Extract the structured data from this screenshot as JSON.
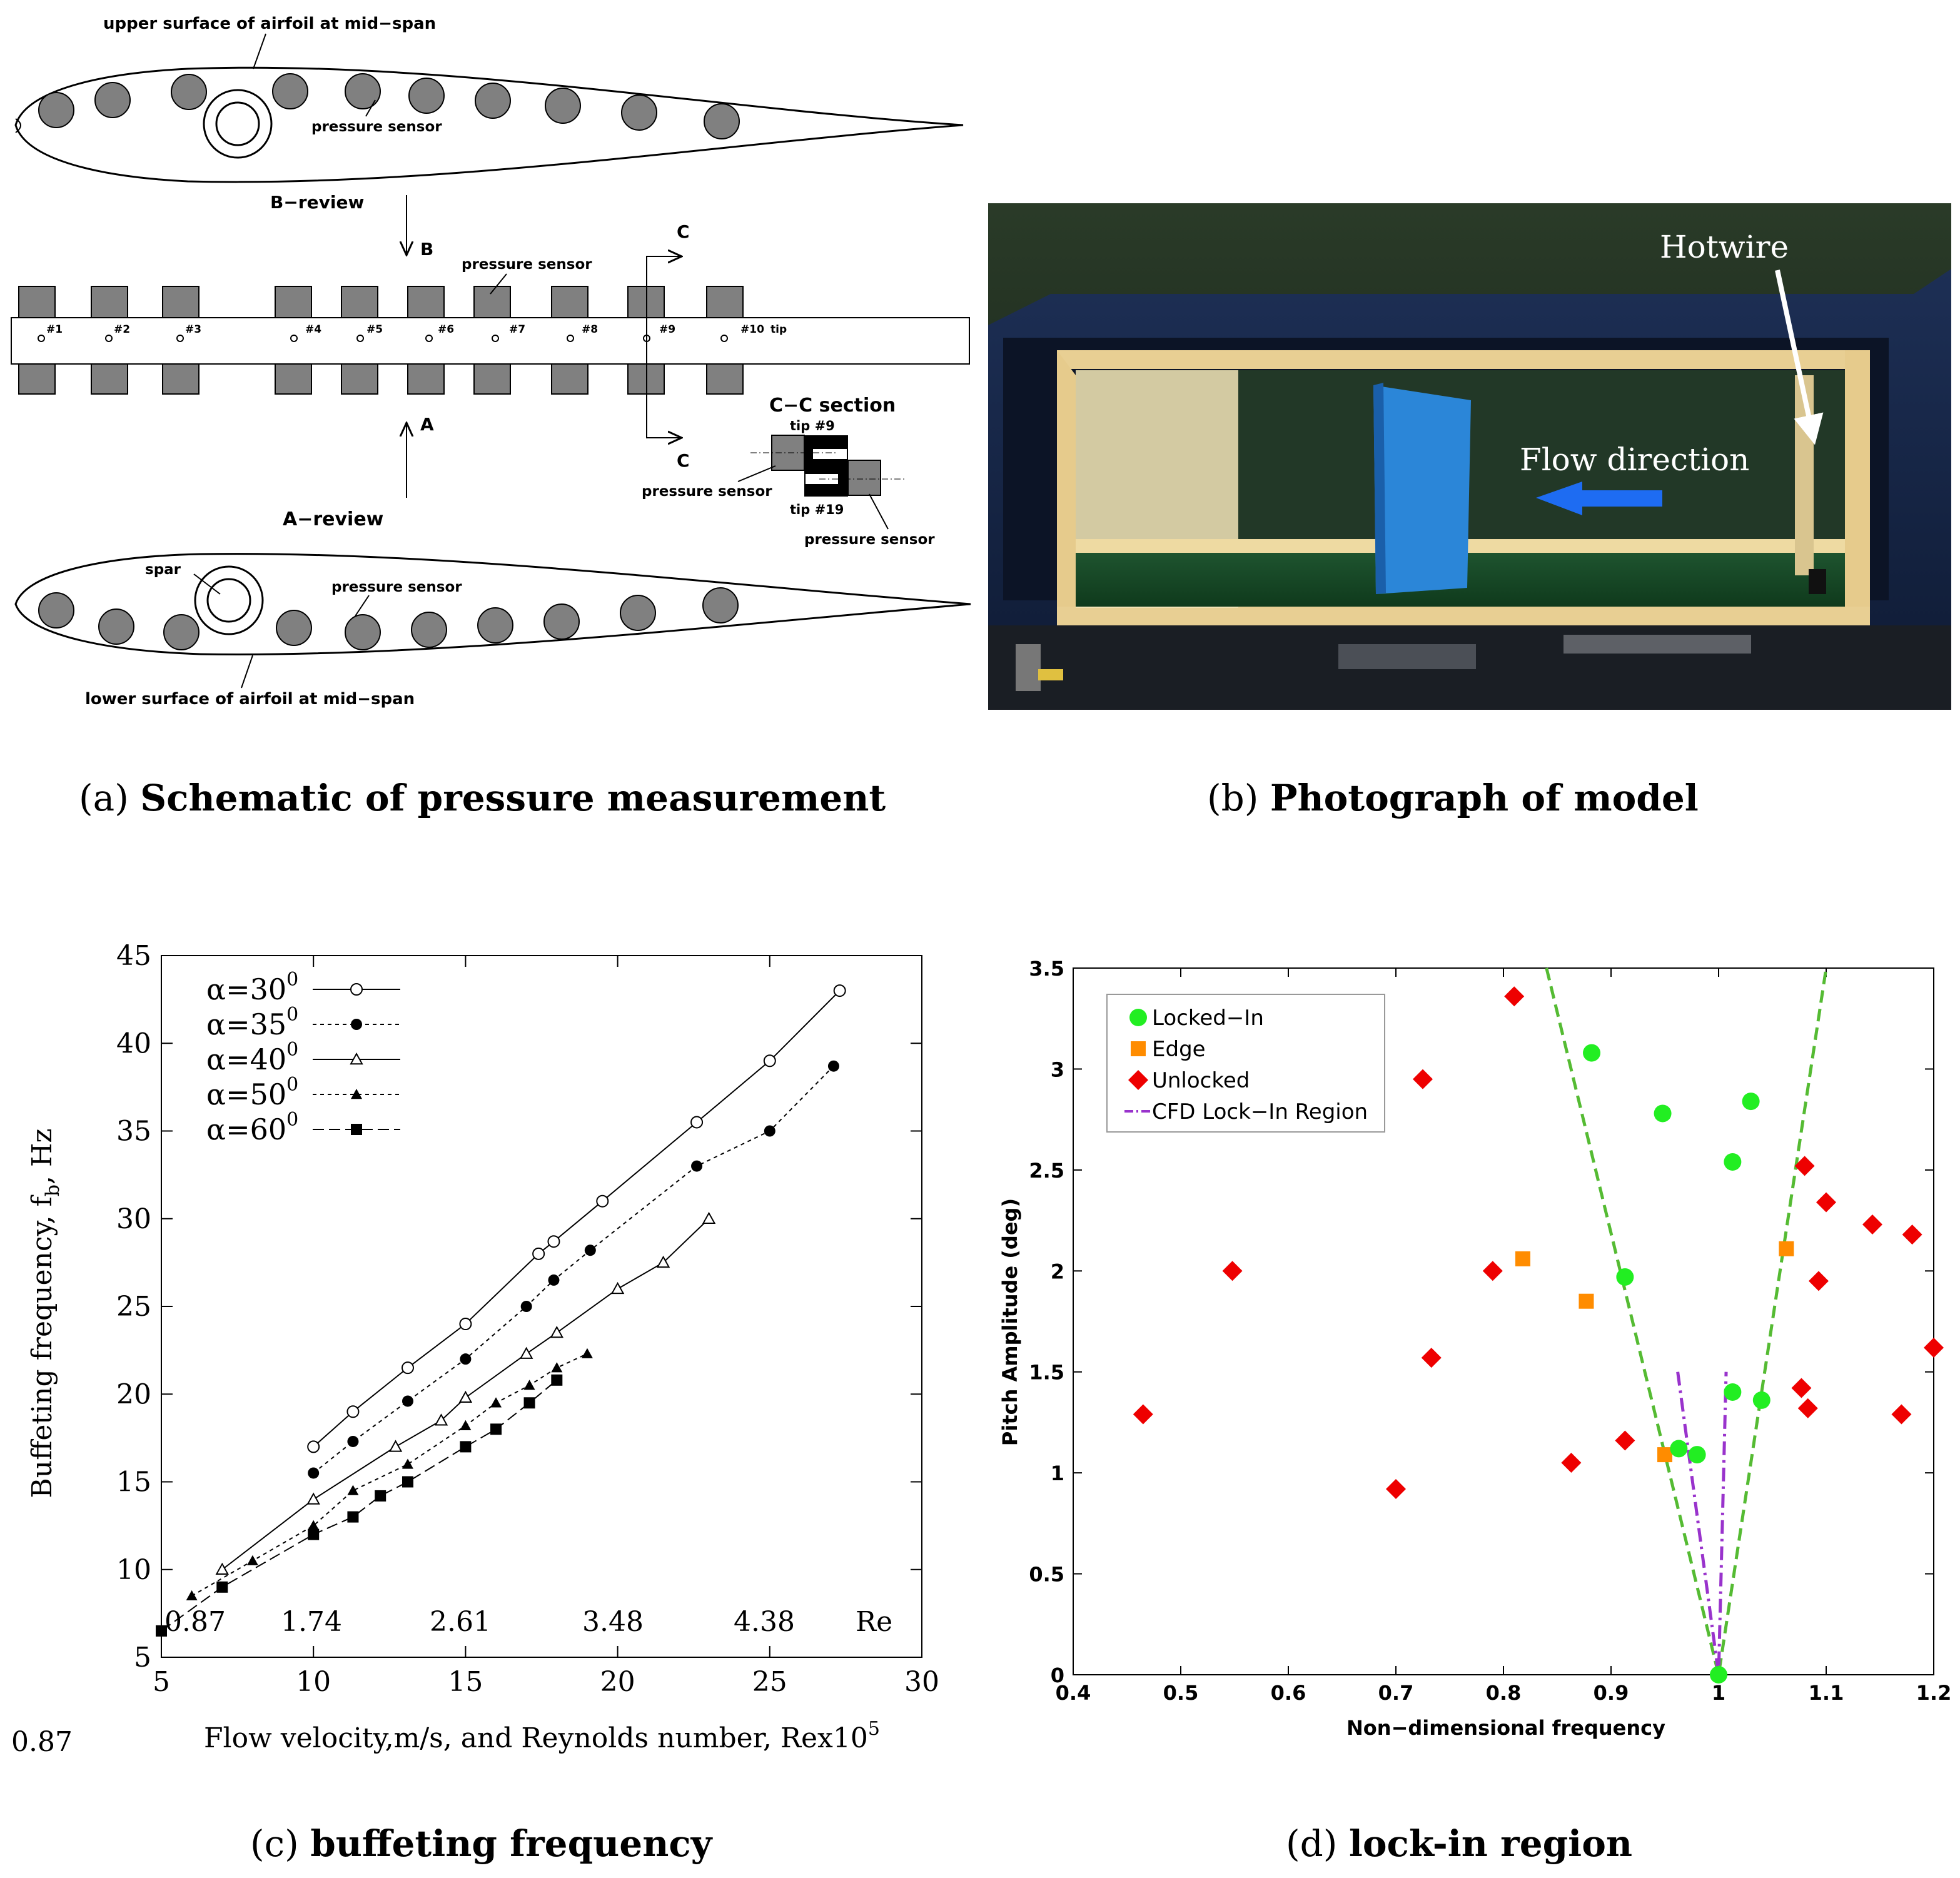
{
  "panel_a": {
    "caption_prefix": "(a)",
    "caption_bold": "Schematic of pressure measurement",
    "upper_label": "upper surface of airfoil at mid−span",
    "lower_label": "lower surface of airfoil at mid−span",
    "pressure_sensor": "pressure sensor",
    "b_review": "B−review",
    "a_review": "A−review",
    "b": "B",
    "a": "A",
    "c": "C",
    "cc_section": "C−C  section",
    "tip9": "tip #9",
    "tip19": "tip #19",
    "spar": "spar",
    "taps": [
      "#1",
      "#2",
      "#3",
      "#4",
      "#5",
      "#6",
      "#7",
      "#8",
      "#9",
      "#10"
    ],
    "tip": "tip"
  },
  "panel_b": {
    "caption_prefix": "(b)",
    "caption_bold": "Photograph of model",
    "hotwire": "Hotwire",
    "flow_direction": "Flow direction"
  },
  "panel_c": {
    "caption_prefix": "(c)",
    "caption_bold": "buffeting frequency",
    "xlabel": "Flow velocity,m/s, and Reynolds number, Rex10",
    "xlabel_sup": "5",
    "ylabel": "Buffeting frequency, f",
    "ylabel_sub": "b",
    "ylabel_tail": ", Hz",
    "outside_label": "0.87",
    "re_label": "Re",
    "re_values": [
      "0.87",
      "1.74",
      "2.61",
      "3.48",
      "4.38"
    ]
  },
  "panel_d": {
    "caption_prefix": "(d)",
    "caption_bold": "lock-in region",
    "xlabel": "Non−dimensional frequency",
    "ylabel": "Pitch Amplitude (deg)"
  },
  "chart_data": [
    {
      "type": "line",
      "title": "",
      "xlabel": "Flow velocity,m/s, and Reynolds number, Rex10^5",
      "ylabel": "Buffeting frequency, f_b, Hz",
      "xlim": [
        5,
        30
      ],
      "ylim": [
        5,
        45
      ],
      "xticks": [
        "5",
        "10",
        "15",
        "20",
        "25",
        "30"
      ],
      "yticks": [
        "5",
        "10",
        "15",
        "20",
        "25",
        "30",
        "35",
        "40",
        "45"
      ],
      "legend_position": "top-left",
      "series": [
        {
          "name": "α=30",
          "sup": "0",
          "marker": "open-circle",
          "dash": "solid",
          "x": [
            10,
            11.3,
            13.1,
            15,
            17.4,
            17.9,
            19.5,
            22.6,
            25,
            27.3
          ],
          "y": [
            17,
            19,
            21.5,
            24,
            28,
            28.7,
            31,
            35.5,
            39,
            43
          ]
        },
        {
          "name": "α=35",
          "sup": "0",
          "marker": "filled-circle",
          "dash": "dotted",
          "x": [
            10,
            11.3,
            13.1,
            15,
            17,
            17.9,
            19.1,
            22.6,
            25,
            27.1
          ],
          "y": [
            15.5,
            17.3,
            19.6,
            22,
            25,
            26.5,
            28.2,
            33,
            35,
            38.7
          ]
        },
        {
          "name": "α=40",
          "sup": "0",
          "marker": "open-triangle",
          "dash": "solid",
          "x": [
            7,
            10,
            12.7,
            14.2,
            15,
            17,
            18,
            20,
            21.5,
            23
          ],
          "y": [
            10,
            14,
            17,
            18.5,
            19.8,
            22.3,
            23.5,
            26,
            27.5,
            30
          ]
        },
        {
          "name": "α=50",
          "sup": "0",
          "marker": "filled-triangle",
          "dash": "dotted",
          "x": [
            6,
            8,
            10,
            11.3,
            13.1,
            15,
            16,
            17.1,
            18,
            19
          ],
          "y": [
            8.5,
            10.5,
            12.5,
            14.5,
            16,
            18.2,
            19.5,
            20.5,
            21.5,
            22.3
          ]
        },
        {
          "name": "α=60",
          "sup": "0",
          "marker": "filled-square",
          "dash": "dashed",
          "x": [
            5,
            7,
            10,
            11.3,
            12.2,
            13.1,
            15,
            16,
            17.1,
            18
          ],
          "y": [
            6.5,
            9,
            12,
            13,
            14.2,
            15,
            17,
            18,
            19.5,
            20.8
          ]
        }
      ]
    },
    {
      "type": "scatter",
      "title": "",
      "xlabel": "Non−dimensional frequency",
      "ylabel": "Pitch Amplitude (deg)",
      "xlim": [
        0.4,
        1.2
      ],
      "ylim": [
        0,
        3.5
      ],
      "xticks": [
        "0.4",
        "0.5",
        "0.6",
        "0.7",
        "0.8",
        "0.9",
        "1",
        "1.1",
        "1.2"
      ],
      "yticks": [
        "0",
        "0.5",
        "1",
        "1.5",
        "2",
        "2.5",
        "3",
        "3.5"
      ],
      "legend_position": "top-left",
      "series": [
        {
          "name": "Locked−In",
          "color": "#22ee22",
          "marker": "circle",
          "points": [
            [
              1.0,
              0.0
            ],
            [
              0.963,
              1.12
            ],
            [
              0.98,
              1.09
            ],
            [
              1.013,
              1.4
            ],
            [
              1.04,
              1.36
            ],
            [
              0.913,
              1.97
            ],
            [
              0.882,
              3.08
            ],
            [
              0.948,
              2.78
            ],
            [
              1.013,
              2.54
            ],
            [
              1.03,
              2.84
            ]
          ]
        },
        {
          "name": "Edge",
          "color": "#ff8c00",
          "marker": "square",
          "points": [
            [
              0.818,
              2.06
            ],
            [
              0.877,
              1.85
            ],
            [
              0.95,
              1.09
            ],
            [
              1.063,
              2.11
            ]
          ]
        },
        {
          "name": "Unlocked",
          "color": "#ee0000",
          "marker": "diamond",
          "points": [
            [
              0.465,
              1.29
            ],
            [
              0.548,
              2.0
            ],
            [
              0.7,
              0.92
            ],
            [
              0.725,
              2.95
            ],
            [
              0.733,
              1.57
            ],
            [
              0.79,
              2.0
            ],
            [
              0.81,
              3.36
            ],
            [
              0.863,
              1.05
            ],
            [
              0.913,
              1.16
            ],
            [
              1.077,
              1.42
            ],
            [
              1.08,
              2.52
            ],
            [
              1.083,
              1.32
            ],
            [
              1.093,
              1.95
            ],
            [
              1.1,
              2.34
            ],
            [
              1.143,
              2.23
            ],
            [
              1.17,
              1.29
            ],
            [
              1.18,
              2.18
            ],
            [
              1.2,
              1.62
            ]
          ]
        },
        {
          "name": "CFD Lock−In Region",
          "color": "#9933cc",
          "line": "dash-dot",
          "segments": [
            [
              [
                0.962,
                1.5
              ],
              [
                1.0,
                0.0
              ],
              [
                1.007,
                1.5
              ]
            ]
          ]
        }
      ],
      "extra_lines": [
        {
          "name": "Lock-in bounds",
          "color": "#55bb33",
          "line": "dashed",
          "segments": [
            [
              [
                0.84,
                3.5
              ],
              [
                1.0,
                0.0
              ],
              [
                1.1,
                3.5
              ]
            ]
          ]
        }
      ]
    }
  ]
}
